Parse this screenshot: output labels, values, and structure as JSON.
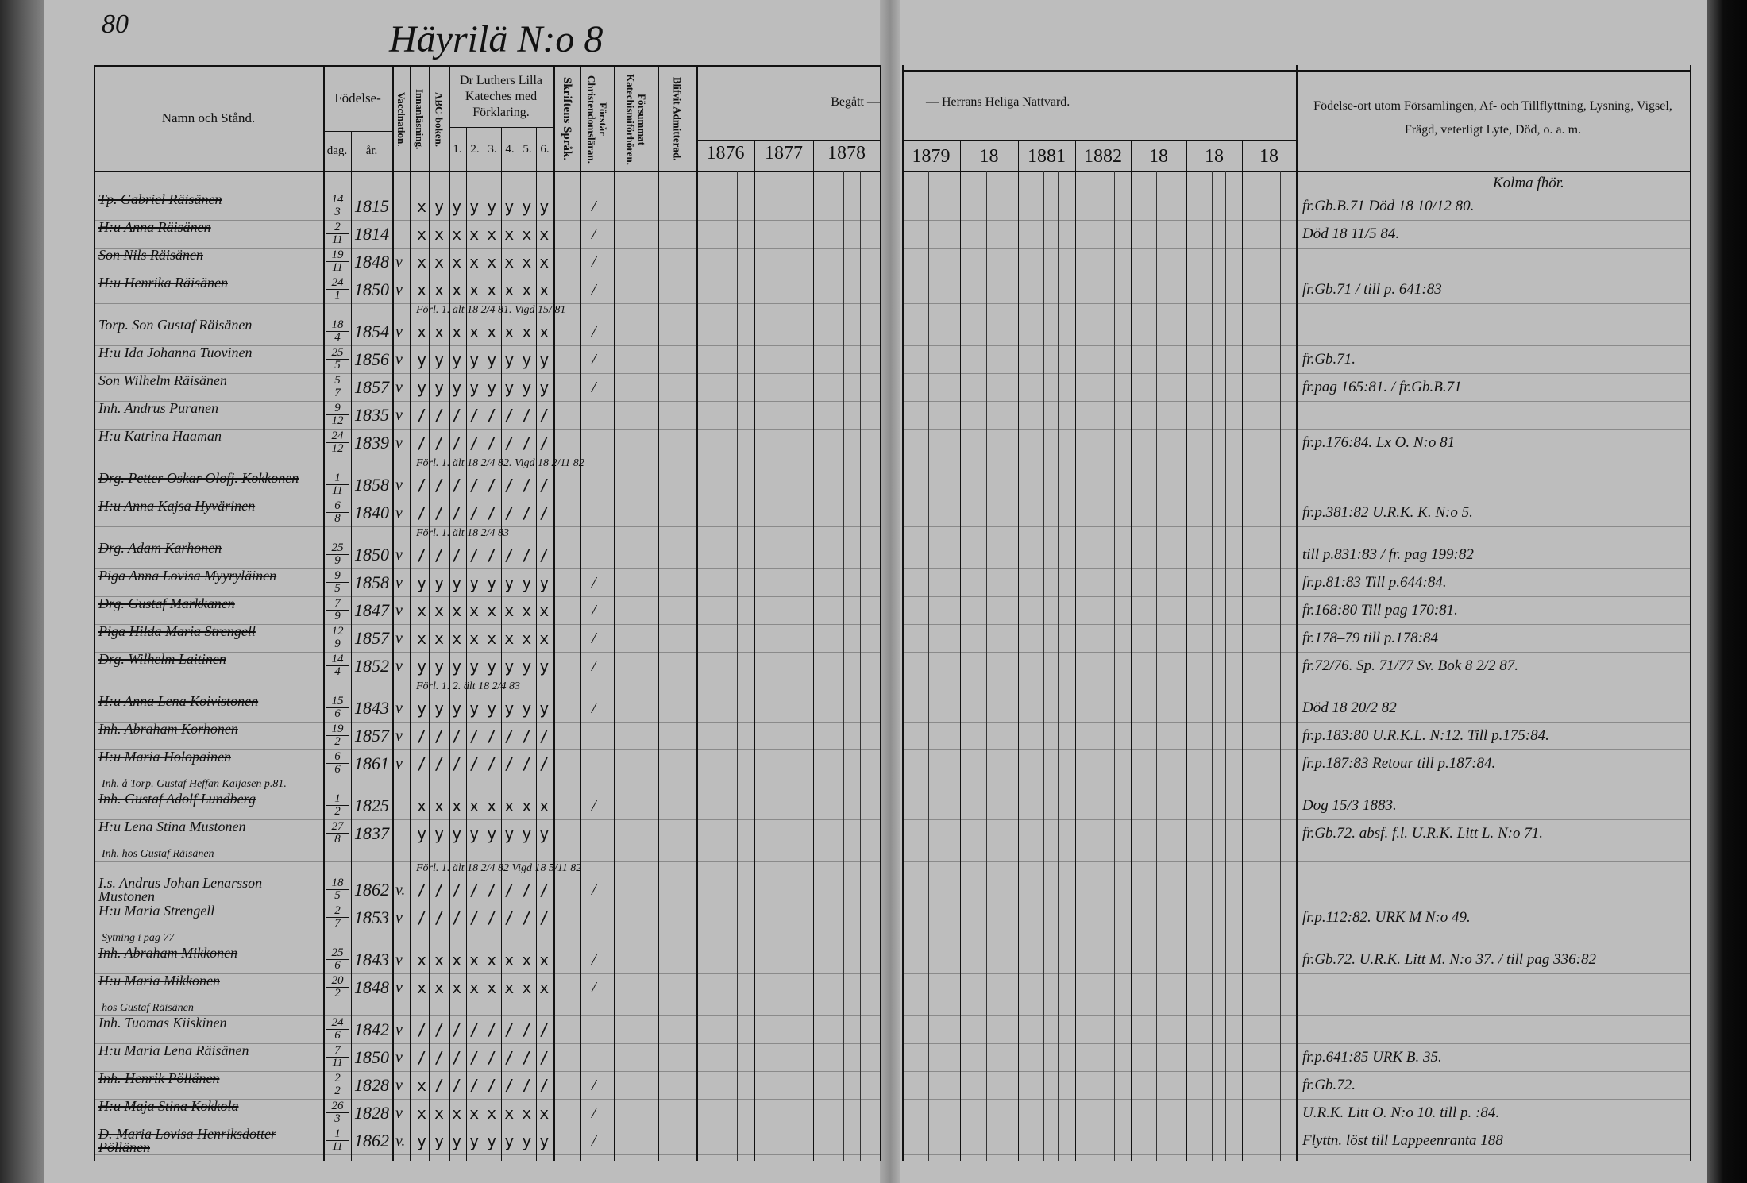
{
  "page_number": "80",
  "title": "Häyrilä N:o 8",
  "headers": {
    "name": "Namn och Stånd.",
    "birth": "Födelse-",
    "birth_day": "dag.",
    "birth_year": "år.",
    "vaccination": "Vaccination.",
    "reading": "Innanläsning.",
    "abc": "ABC-boken.",
    "catechism": "Dr Luthers Lilla Kateches med Förklaring.",
    "catechism_parts": [
      "1.",
      "2.",
      "3.",
      "4.",
      "5.",
      "6."
    ],
    "scripture": "Skriftens Språk.",
    "understands": "Förstår Christendomsläran.",
    "missed": "Försummat Katechismiförhören.",
    "admitted": "Blifvit Admitterad.",
    "communion_left": "Begått —",
    "communion_right": "— Herrans Heliga Nattvard.",
    "years_left": [
      "1876",
      "1877",
      "1878"
    ],
    "years_right": [
      "1879",
      "18",
      "1881",
      "1882",
      "18",
      "18",
      "18"
    ],
    "remarks": "Födelse-ort utom Församlingen, Af- och Tillflyttning, Lysning, Vigsel, Frägd, veterligt Lyte, Död, o. a. m."
  },
  "rows": [
    {
      "name": "Tp. Gabriel Räisänen",
      "day": "14",
      "month": "3",
      "year": "1815",
      "vacc": "",
      "marks": "xyyyyyyy",
      "admit": "/",
      "struck": true,
      "remark": "fr.Gb.B.71  Död 18 10/12 80.",
      "remark_above": "Kolma fhör."
    },
    {
      "name": "H:u Anna Räisänen",
      "day": "2",
      "month": "11",
      "year": "1814",
      "vacc": "",
      "marks": "xxxxxxxx",
      "admit": "/",
      "struck": true,
      "remark": "Död 18 11/5 84."
    },
    {
      "name": "Son Nils Räisänen",
      "day": "19",
      "month": "11",
      "year": "1848",
      "vacc": "v",
      "marks": "xxxxxxxx",
      "admit": "/",
      "struck": true,
      "remark": ""
    },
    {
      "name": "H:u Henrika Räisänen",
      "day": "24",
      "month": "1",
      "year": "1850",
      "vacc": "v",
      "marks": "xxxxxxxx",
      "admit": "/",
      "struck": true,
      "remark": "fr.Gb.71 / till p. 641:83"
    },
    {
      "name": "Torp. Son Gustaf Räisänen",
      "day": "18",
      "month": "4",
      "year": "1854",
      "vacc": "v",
      "marks": "xxxxxxxx",
      "admit": "/",
      "struck": false,
      "note": "Förl. 1. ält 18 2/4 81. Vigd 15/ 81",
      "remark": ""
    },
    {
      "name": "H:u Ida Johanna Tuovinen",
      "day": "25",
      "month": "5",
      "year": "1856",
      "vacc": "v",
      "marks": "yyyyyyyy",
      "admit": "/",
      "struck": false,
      "remark": "fr.Gb.71."
    },
    {
      "name": "Son Wilhelm Räisänen",
      "day": "5",
      "month": "7",
      "year": "1857",
      "vacc": "v",
      "marks": "yyyyyyyy",
      "admit": "/",
      "struck": false,
      "remark": "fr.pag 165:81. / fr.Gb.B.71"
    },
    {
      "name": "Inh. Andrus Puranen",
      "day": "9",
      "month": "12",
      "year": "1835",
      "vacc": "v",
      "marks": "////////",
      "admit": "",
      "struck": false,
      "remark": ""
    },
    {
      "name": "H:u Katrina Haaman",
      "day": "24",
      "month": "12",
      "year": "1839",
      "vacc": "v",
      "marks": "////////",
      "admit": "",
      "struck": false,
      "remark": "fr.p.176:84.   Lx O. N:o 81"
    },
    {
      "name": "Drg. Petter Oskar Olofj. Kokkonen",
      "day": "1",
      "month": "11",
      "year": "1858",
      "vacc": "v",
      "marks": "////////",
      "admit": "",
      "struck": true,
      "note": "Förl. 1. ält 18 2/4 82. Vigd 18 2/11 82",
      "remark": ""
    },
    {
      "name": "H:u Anna Kajsa Hyvärinen",
      "day": "6",
      "month": "8",
      "year": "1840",
      "vacc": "v",
      "marks": "////////",
      "admit": "",
      "struck": true,
      "remark": "fr.p.381:82  U.R.K. K. N:o 5."
    },
    {
      "name": "Drg. Adam Karhonen",
      "day": "25",
      "month": "9",
      "year": "1850",
      "vacc": "v",
      "marks": "////////",
      "admit": "",
      "struck": true,
      "note": "Förl. 1. ält 18 2/4 83",
      "remark": "till p.831:83 / fr. pag 199:82"
    },
    {
      "name": "Piga Anna Lovisa Myyryläinen",
      "day": "9",
      "month": "5",
      "year": "1858",
      "vacc": "v",
      "marks": "yyyyyyyy",
      "admit": "/",
      "struck": true,
      "remark": "fr.p.81:83   Till p.644:84."
    },
    {
      "name": "Drg. Gustaf Markkanen",
      "day": "7",
      "month": "9",
      "year": "1847",
      "vacc": "v",
      "marks": "xxxxxxxx",
      "admit": "/",
      "struck": true,
      "remark": "fr.168:80 Till pag 170:81."
    },
    {
      "name": "Piga Hilda Maria Strengell",
      "day": "12",
      "month": "9",
      "year": "1857",
      "vacc": "v",
      "marks": "xxxxxxxx",
      "admit": "/",
      "struck": true,
      "remark": "fr.178–79   till p.178:84"
    },
    {
      "name": "Drg. Wilhelm Laitinen",
      "day": "14",
      "month": "4",
      "year": "1852",
      "vacc": "v",
      "marks": "yyyyyyyy",
      "admit": "/",
      "struck": true,
      "remark": "fr.72/76. Sp. 71/77  Sv. Bok 8 2/2 87."
    },
    {
      "name": "H:u Anna Lena Koivistonen",
      "day": "15",
      "month": "6",
      "year": "1843",
      "vacc": "v",
      "marks": "yyyyyyyy",
      "admit": "/",
      "struck": true,
      "note": "Förl. 1. 2. ält 18 2/4 83",
      "remark": "Död 18 20/2 82"
    },
    {
      "name": "Inh. Abraham Korhonen",
      "day": "19",
      "month": "2",
      "year": "1857",
      "vacc": "v",
      "marks": "////////",
      "admit": "",
      "struck": true,
      "remark": "fr.p.183:80   U.R.K.L. N:12. Till p.175:84."
    },
    {
      "name": "H:u Maria Holopainen",
      "day": "6",
      "month": "6",
      "year": "1861",
      "vacc": "v",
      "marks": "////////",
      "admit": "",
      "struck": true,
      "sub": "Inh. å Torp. Gustaf Heffan Kaijasen p.81.",
      "remark": "fr.p.187:83 Retour till p.187:84."
    },
    {
      "name": "Inh. Gustaf Adolf Lundberg",
      "day": "1",
      "month": "2",
      "year": "1825",
      "vacc": "",
      "marks": "xxxxxxxx",
      "admit": "/",
      "struck": true,
      "remark": "Dog 15/3 1883."
    },
    {
      "name": "H:u Lena Stina Mustonen",
      "day": "27",
      "month": "8",
      "year": "1837",
      "vacc": "",
      "marks": "yyyyyyyy",
      "admit": "",
      "struck": false,
      "sub": "Inh. hos Gustaf Räisänen",
      "remark": "fr.Gb.72. absf. f.l. U.R.K. Litt L. N:o 71."
    },
    {
      "name": "I.s. Andrus Johan Lenarsson Mustonen",
      "day": "18",
      "month": "5",
      "year": "1862",
      "vacc": "v.",
      "marks": "////////",
      "admit": "/",
      "struck": false,
      "note": "Förl. 1. ält 18 2/4 82  Vigd 18 5/11 82",
      "remark": ""
    },
    {
      "name": "H:u Maria Strengell",
      "day": "2",
      "month": "7",
      "year": "1853",
      "vacc": "v",
      "marks": "////////",
      "admit": "",
      "struck": false,
      "sub": "Sytning i pag 77",
      "remark": "fr.p.112:82.   URK M N:o 49."
    },
    {
      "name": "Inh. Abraham Mikkonen",
      "day": "25",
      "month": "6",
      "year": "1843",
      "vacc": "v",
      "marks": "xxxxxxxx",
      "admit": "/",
      "struck": true,
      "remark": "fr.Gb.72.  U.R.K. Litt M. N:o 37. / till pag 336:82"
    },
    {
      "name": "H:u Maria Mikkonen",
      "day": "20",
      "month": "2",
      "year": "1848",
      "vacc": "v",
      "marks": "xxxxxxxx",
      "admit": "/",
      "struck": true,
      "sub": "hos Gustaf Räisänen",
      "remark": ""
    },
    {
      "name": "Inh. Tuomas Kiiskinen",
      "day": "24",
      "month": "6",
      "year": "1842",
      "vacc": "v",
      "marks": "////////",
      "admit": "",
      "struck": false,
      "remark": ""
    },
    {
      "name": "H:u Maria Lena Räisänen",
      "day": "7",
      "month": "11",
      "year": "1850",
      "vacc": "v",
      "marks": "////////",
      "admit": "",
      "struck": false,
      "remark": "fr.p.641:85    URK B. 35."
    },
    {
      "name": "Inh. Henrik Pöllänen",
      "day": "2",
      "month": "2",
      "year": "1828",
      "vacc": "v",
      "marks": "x///////",
      "admit": "/",
      "struck": true,
      "remark": "fr.Gb.72."
    },
    {
      "name": "H:u Maja Stina Kokkola",
      "day": "26",
      "month": "3",
      "year": "1828",
      "vacc": "v",
      "marks": "xxxxxxxx",
      "admit": "/",
      "struck": true,
      "remark": "U.R.K. Litt O. N:o 10.  till p. :84."
    },
    {
      "name": "D. Maria Lovisa Henriksdotter Pöllänen",
      "day": "1",
      "month": "11",
      "year": "1862",
      "vacc": "v.",
      "marks": "yyyyyyyy",
      "admit": "/",
      "struck": true,
      "remark": "Flyttn. löst till Lappeenranta 188"
    }
  ],
  "colors": {
    "paper": "#bdbdbd",
    "ink": "#111111",
    "binding": "#2a2a2a"
  }
}
